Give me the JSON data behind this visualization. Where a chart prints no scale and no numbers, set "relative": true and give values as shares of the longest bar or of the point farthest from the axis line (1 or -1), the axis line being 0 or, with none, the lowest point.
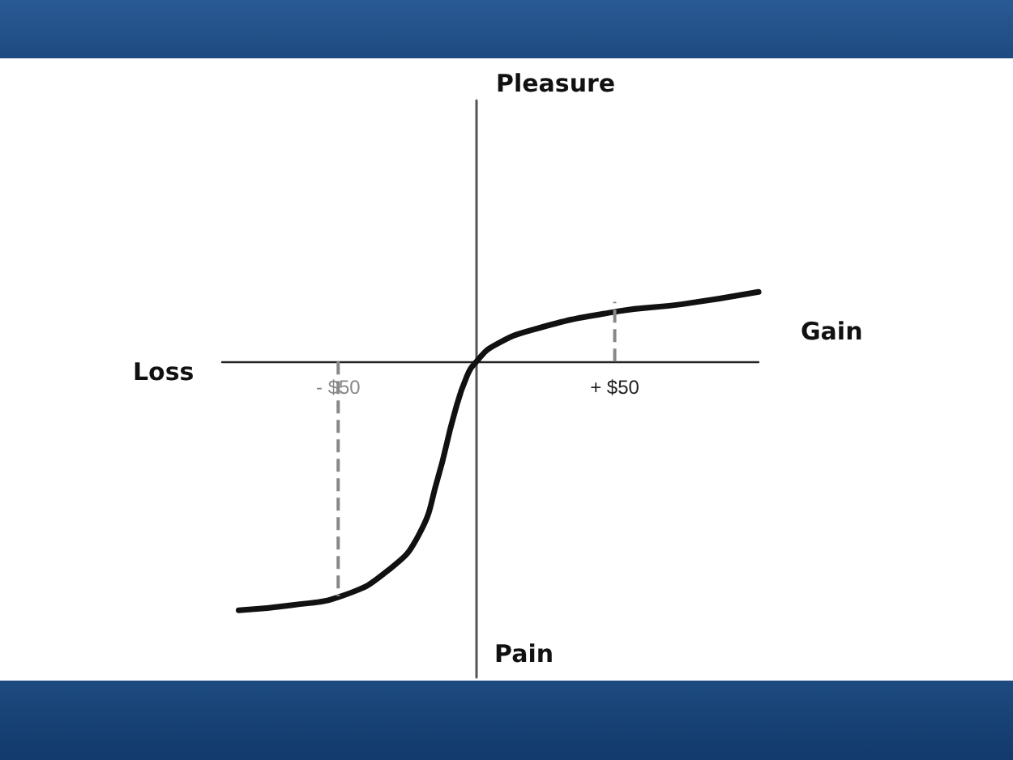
{
  "chart_data": {
    "type": "line",
    "annotations": [
      "Loss",
      "Pain",
      "Pleasure",
      "Gain"
    ],
    "relative": true,
    "xlim": [
      -92,
      102
    ],
    "xticks": [
      {
        "value": -50,
        "label": "- $50"
      },
      {
        "value": 50,
        "label": "+ $50"
      }
    ],
    "series": [
      {
        "color": "#111111",
        "x": [
          -86,
          -67,
          -48,
          -32,
          -21,
          -14,
          -8,
          -3.5,
          0,
          6.5,
          21,
          50,
          74,
          102
        ],
        "values": [
          -1,
          -0.98,
          -0.94,
          -0.84,
          -0.7,
          -0.47,
          -0.21,
          -0.06,
          0,
          0.065,
          0.13,
          0.2,
          0.23,
          0.28
        ]
      }
    ],
    "ref_lines": [
      {
        "axis": "x",
        "value": -50,
        "color": "#888888",
        "line_style": "dashed"
      },
      {
        "axis": "x",
        "value": 50,
        "color": "#888888",
        "line_style": "dashed"
      }
    ],
    "grid": false,
    "marker": "none",
    "line_style": "solid"
  }
}
